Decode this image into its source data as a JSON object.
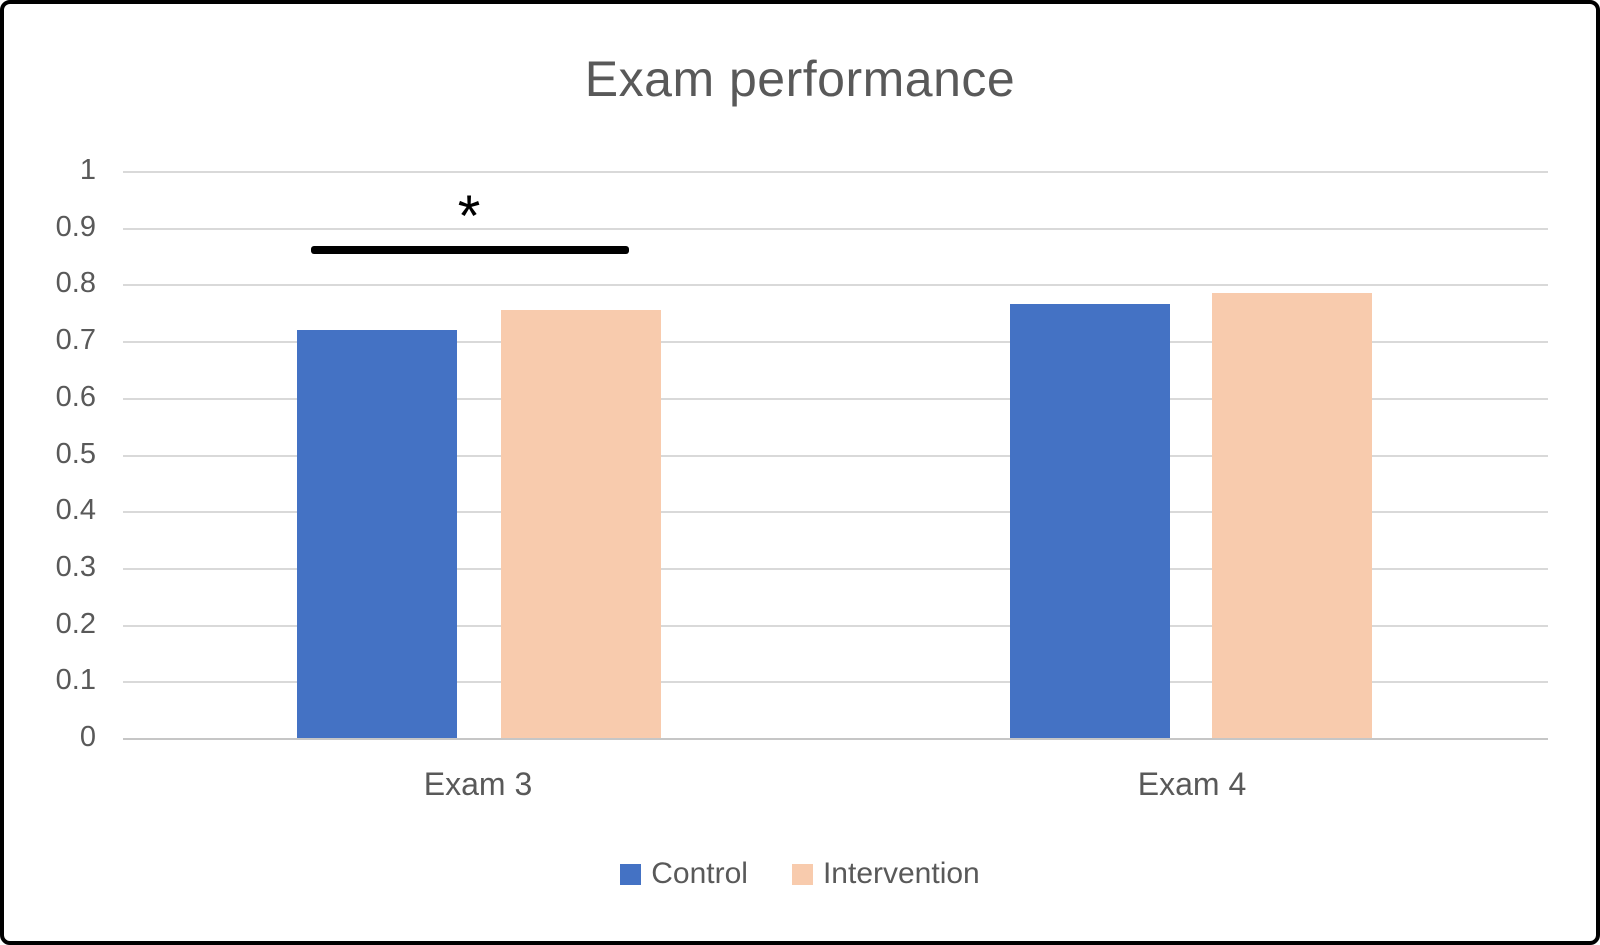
{
  "chart_data": {
    "type": "bar",
    "title": "Exam performance",
    "categories": [
      "Exam 3",
      "Exam 4"
    ],
    "series": [
      {
        "name": "Control",
        "color": "#4472C4",
        "values": [
          0.72,
          0.765
        ]
      },
      {
        "name": "Intervention",
        "color": "#F8CBAD",
        "values": [
          0.755,
          0.785
        ]
      }
    ],
    "y_ticks": [
      "1",
      "0.9",
      "0.8",
      "0.7",
      "0.6",
      "0.5",
      "0.4",
      "0.3",
      "0.2",
      "0.1",
      "0"
    ],
    "ylim": [
      0,
      1
    ],
    "grid": "horizontal",
    "legend_position": "bottom",
    "colors": {
      "gridline": "#D9D9D9",
      "axis_baseline": "#C6C6C6",
      "text": "#595959",
      "significance_marker": "#000000"
    },
    "annotations": [
      {
        "symbol": "*",
        "category": "Exam 3",
        "type": "significance-bracket"
      }
    ]
  }
}
